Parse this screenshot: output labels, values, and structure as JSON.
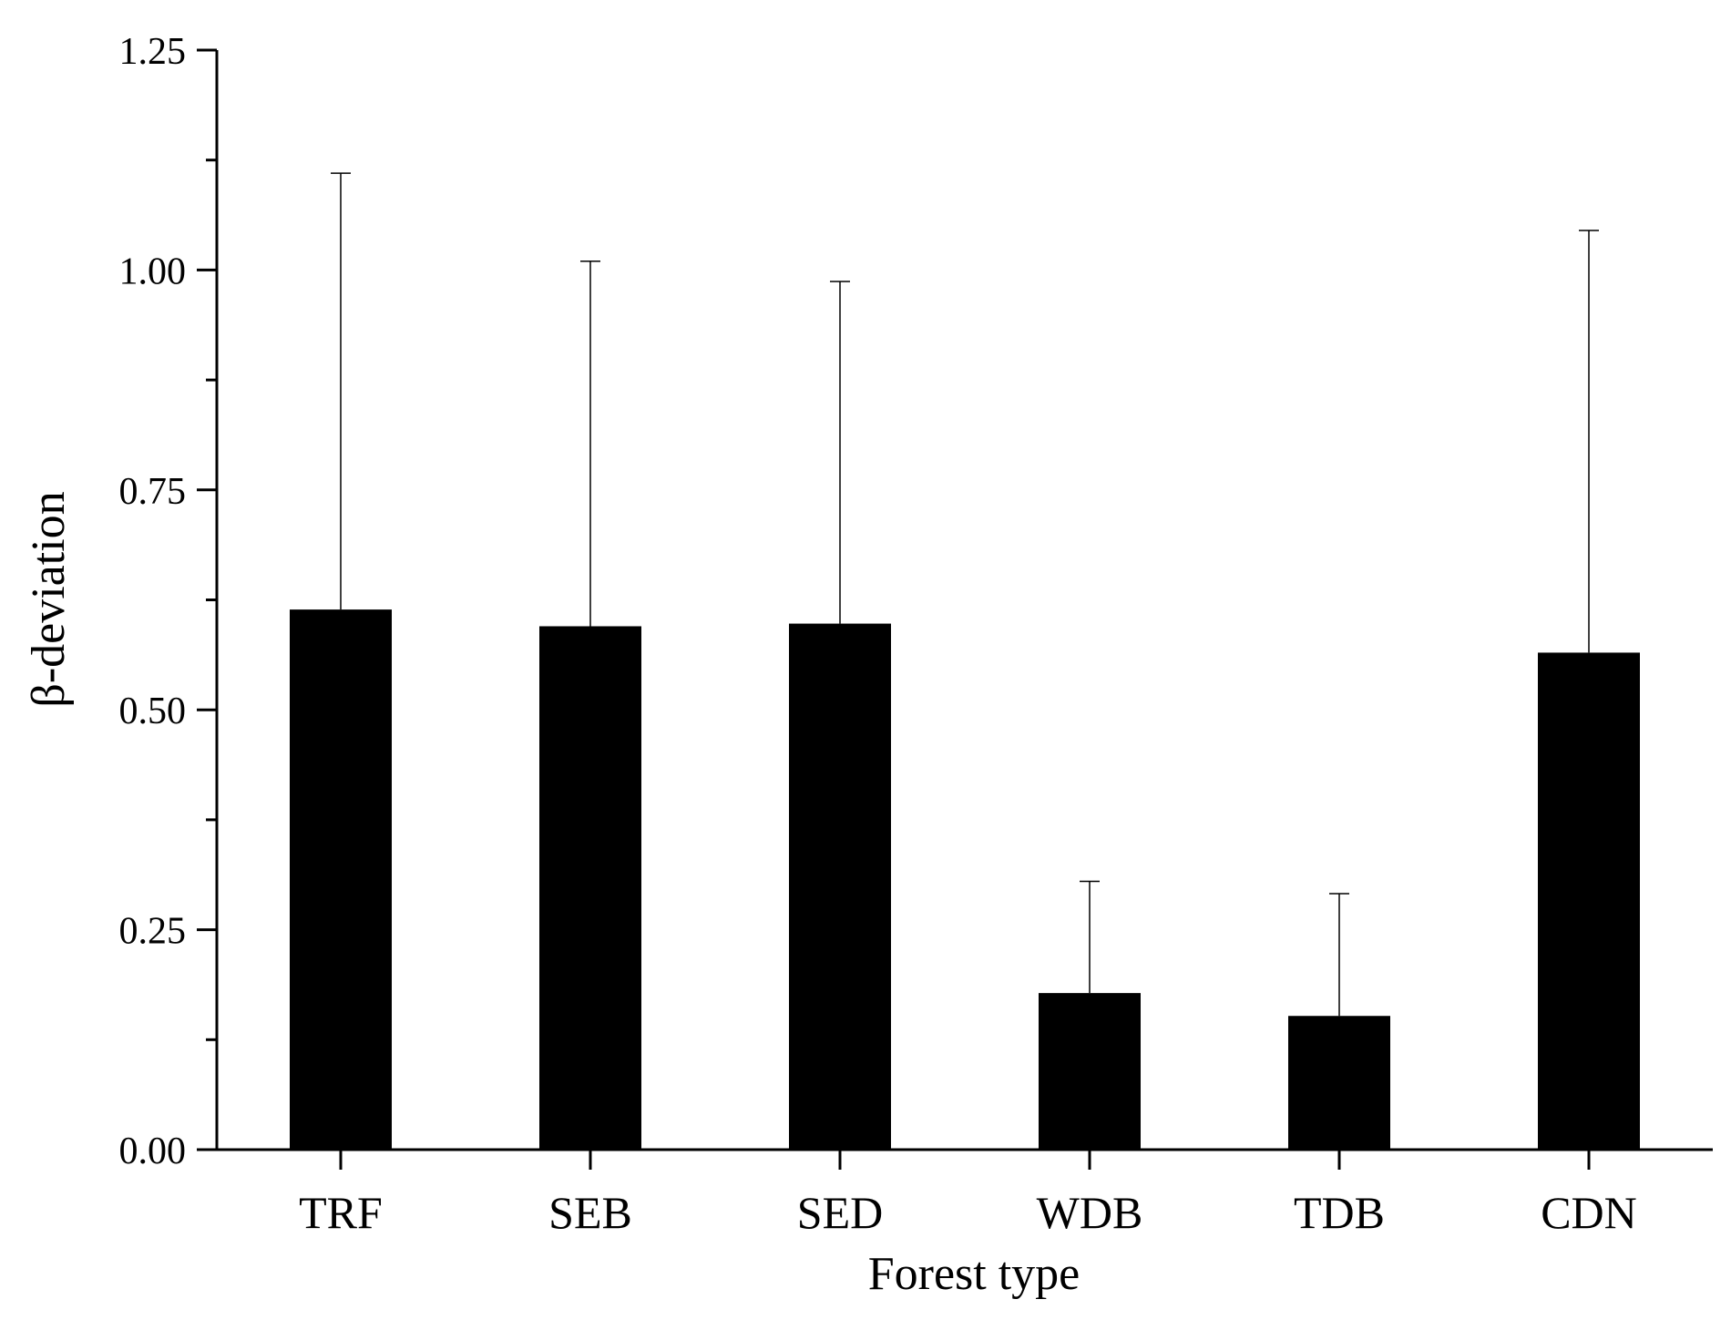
{
  "chart_data": {
    "type": "bar",
    "title": "",
    "xlabel": "Forest type",
    "ylabel": "β-deviation",
    "categories": [
      "TRF",
      "SEB",
      "SED",
      "WDB",
      "TDB",
      "CDN"
    ],
    "values": [
      0.614,
      0.595,
      0.598,
      0.178,
      0.152,
      0.565
    ],
    "error_upper": [
      1.11,
      1.01,
      0.987,
      0.305,
      0.291,
      1.045
    ],
    "ylim": [
      0,
      1.25
    ],
    "yticks": [
      "0.00",
      "0.25",
      "0.50",
      "0.75",
      "1.00",
      "1.25"
    ],
    "ytick_values": [
      0,
      0.25,
      0.5,
      0.75,
      1.0,
      1.25
    ],
    "grid": false,
    "legend": "none",
    "colors": {
      "bar": "#000000",
      "error_bar": "#000000",
      "axis": "#000000"
    }
  }
}
